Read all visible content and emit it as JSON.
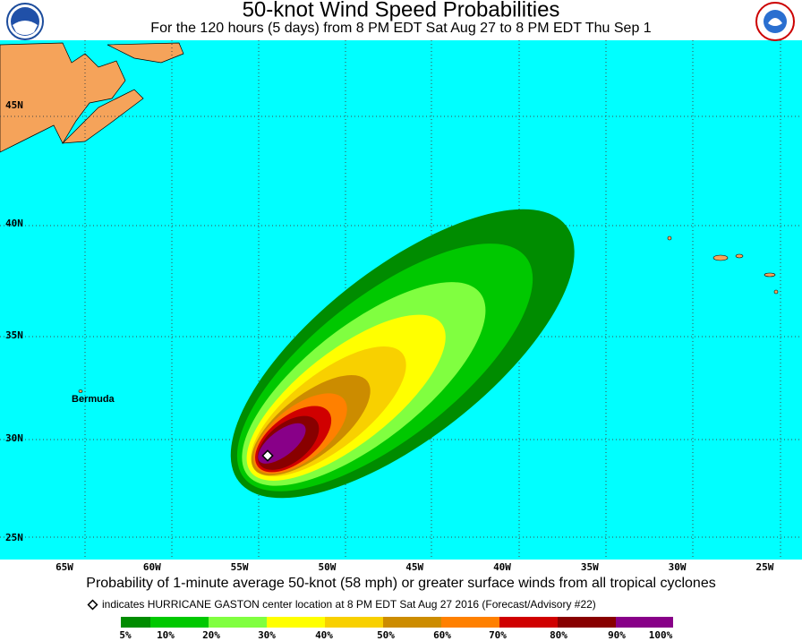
{
  "header": {
    "title": "50-knot Wind Speed Probabilities",
    "subtitle": "For the 120 hours (5 days) from 8 PM EDT Sat Aug 27 to 8 PM EDT Thu Sep 1"
  },
  "map": {
    "latitude_labels": [
      "45N",
      "40N",
      "35N",
      "30N",
      "25N"
    ],
    "longitude_labels": [
      "65W",
      "60W",
      "55W",
      "50W",
      "45W",
      "40W",
      "35W",
      "30W",
      "25W"
    ],
    "place_label": "Bermuda"
  },
  "footer": {
    "caption": "Probability of 1-minute average 50-knot (58 mph) or greater surface winds from all tropical cyclones",
    "marker_note": "indicates HURRICANE GASTON center location at 8 PM EDT Sat Aug 27 2016 (Forecast/Advisory #22)",
    "legend": [
      "5%",
      "10%",
      "20%",
      "30%",
      "40%",
      "50%",
      "60%",
      "70%",
      "80%",
      "90%",
      "100%"
    ]
  }
}
